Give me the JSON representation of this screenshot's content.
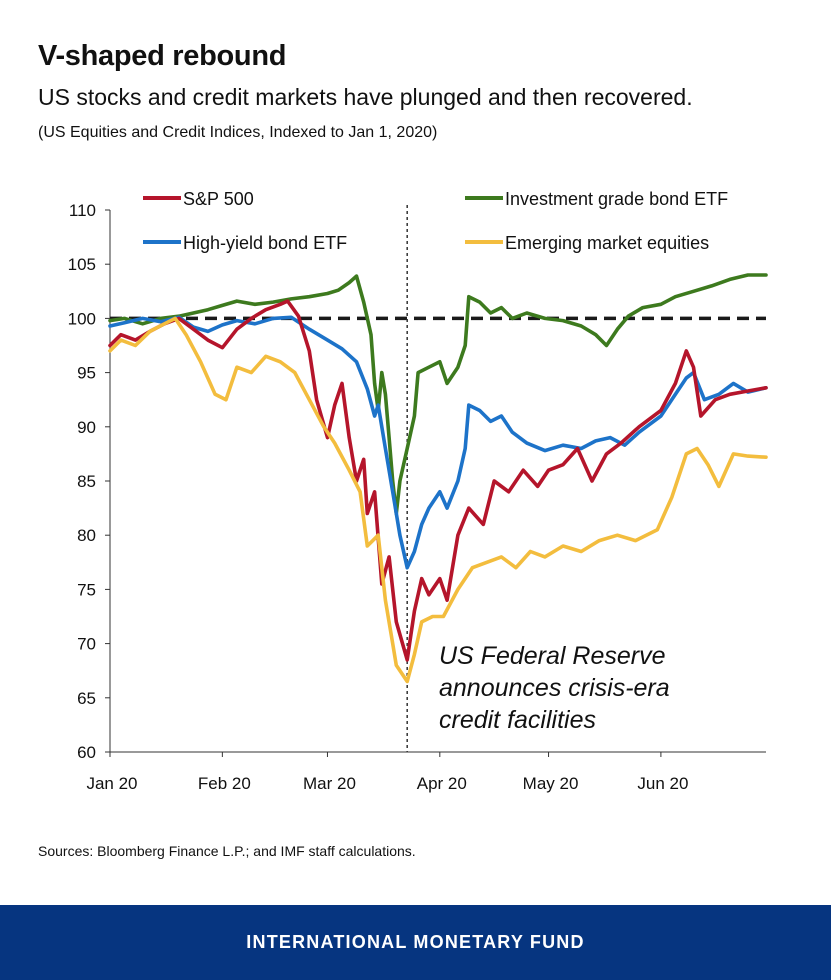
{
  "header": {
    "title": "V-shaped rebound",
    "subtitle": "US stocks and credit markets have plunged and then recovered.",
    "note": "(US Equities and Credit Indices, Indexed to Jan 1, 2020)"
  },
  "source": "Sources: Bloomberg Finance L.P.; and IMF staff calculations.",
  "footer": {
    "org": "INTERNATIONAL MONETARY FUND"
  },
  "chart_data": {
    "type": "line",
    "ylim": [
      60,
      110
    ],
    "yticks": [
      110,
      105,
      100,
      95,
      90,
      85,
      80,
      75,
      70,
      65,
      60
    ],
    "xlim": [
      "2020-01-01",
      "2020-06-30"
    ],
    "xticks": [
      {
        "label": "Jan 20",
        "date": "2020-01-01"
      },
      {
        "label": "Feb 20",
        "date": "2020-02-01"
      },
      {
        "label": "Mar 20",
        "date": "2020-03-01"
      },
      {
        "label": "Apr 20",
        "date": "2020-04-01"
      },
      {
        "label": "May 20",
        "date": "2020-05-01"
      },
      {
        "label": "Jun 20",
        "date": "2020-06-01"
      }
    ],
    "reference_line": {
      "y": 100,
      "style": "dashed"
    },
    "event_line": {
      "date": "2020-03-23",
      "style": "dotted"
    },
    "annotation": [
      "US Federal Reserve",
      "announces crisis-era",
      "credit facilities"
    ],
    "legend": [
      "S&P 500",
      "Investment grade bond ETF",
      "High-yield bond ETF",
      "Emerging market equities"
    ],
    "colors": {
      "S&P 500": "#b5152b",
      "Investment grade bond ETF": "#3d7a1e",
      "High-yield bond ETF": "#1d73c9",
      "Emerging market equities": "#f3bd3e"
    },
    "series": [
      {
        "name": "Investment grade bond ETF",
        "points": [
          [
            "2020-01-01",
            99.8
          ],
          [
            "2020-01-05",
            100.0
          ],
          [
            "2020-01-10",
            99.5
          ],
          [
            "2020-01-15",
            100.0
          ],
          [
            "2020-01-20",
            100.2
          ],
          [
            "2020-01-24",
            100.5
          ],
          [
            "2020-01-28",
            100.8
          ],
          [
            "2020-02-01",
            101.2
          ],
          [
            "2020-02-05",
            101.6
          ],
          [
            "2020-02-10",
            101.3
          ],
          [
            "2020-02-15",
            101.5
          ],
          [
            "2020-02-20",
            101.8
          ],
          [
            "2020-02-25",
            102.0
          ],
          [
            "2020-03-01",
            102.3
          ],
          [
            "2020-03-04",
            102.6
          ],
          [
            "2020-03-07",
            103.3
          ],
          [
            "2020-03-09",
            103.9
          ],
          [
            "2020-03-11",
            101.5
          ],
          [
            "2020-03-13",
            98.5
          ],
          [
            "2020-03-14",
            94.0
          ],
          [
            "2020-03-15",
            91.5
          ],
          [
            "2020-03-16",
            95.0
          ],
          [
            "2020-03-17",
            93.0
          ],
          [
            "2020-03-18",
            89.0
          ],
          [
            "2020-03-19",
            85.0
          ],
          [
            "2020-03-20",
            82.0
          ],
          [
            "2020-03-21",
            85.0
          ],
          [
            "2020-03-23",
            88.0
          ],
          [
            "2020-03-25",
            91.0
          ],
          [
            "2020-03-26",
            95.0
          ],
          [
            "2020-03-29",
            95.5
          ],
          [
            "2020-04-01",
            96.0
          ],
          [
            "2020-04-03",
            94.0
          ],
          [
            "2020-04-06",
            95.5
          ],
          [
            "2020-04-08",
            97.5
          ],
          [
            "2020-04-09",
            102.0
          ],
          [
            "2020-04-12",
            101.5
          ],
          [
            "2020-04-15",
            100.5
          ],
          [
            "2020-04-18",
            101.0
          ],
          [
            "2020-04-21",
            100.0
          ],
          [
            "2020-04-25",
            100.5
          ],
          [
            "2020-04-30",
            100.0
          ],
          [
            "2020-05-05",
            99.8
          ],
          [
            "2020-05-10",
            99.3
          ],
          [
            "2020-05-14",
            98.5
          ],
          [
            "2020-05-17",
            97.5
          ],
          [
            "2020-05-20",
            99.0
          ],
          [
            "2020-05-23",
            100.2
          ],
          [
            "2020-05-27",
            101.0
          ],
          [
            "2020-06-01",
            101.3
          ],
          [
            "2020-06-05",
            102.0
          ],
          [
            "2020-06-10",
            102.5
          ],
          [
            "2020-06-15",
            103.0
          ],
          [
            "2020-06-20",
            103.6
          ],
          [
            "2020-06-25",
            104.0
          ],
          [
            "2020-06-30",
            104.0
          ]
        ]
      },
      {
        "name": "High-yield bond ETF",
        "points": [
          [
            "2020-01-01",
            99.3
          ],
          [
            "2020-01-05",
            99.6
          ],
          [
            "2020-01-10",
            100.0
          ],
          [
            "2020-01-15",
            99.7
          ],
          [
            "2020-01-20",
            100.1
          ],
          [
            "2020-01-24",
            99.2
          ],
          [
            "2020-01-28",
            98.8
          ],
          [
            "2020-02-01",
            99.4
          ],
          [
            "2020-02-05",
            99.8
          ],
          [
            "2020-02-10",
            99.5
          ],
          [
            "2020-02-15",
            100.0
          ],
          [
            "2020-02-20",
            100.1
          ],
          [
            "2020-02-25",
            99.0
          ],
          [
            "2020-03-01",
            98.0
          ],
          [
            "2020-03-05",
            97.2
          ],
          [
            "2020-03-09",
            96.0
          ],
          [
            "2020-03-12",
            93.5
          ],
          [
            "2020-03-14",
            91.0
          ],
          [
            "2020-03-15",
            92.0
          ],
          [
            "2020-03-17",
            88.0
          ],
          [
            "2020-03-19",
            84.0
          ],
          [
            "2020-03-21",
            80.0
          ],
          [
            "2020-03-23",
            77.0
          ],
          [
            "2020-03-25",
            78.5
          ],
          [
            "2020-03-27",
            81.0
          ],
          [
            "2020-03-29",
            82.5
          ],
          [
            "2020-04-01",
            84.0
          ],
          [
            "2020-04-03",
            82.5
          ],
          [
            "2020-04-06",
            85.0
          ],
          [
            "2020-04-08",
            88.0
          ],
          [
            "2020-04-09",
            92.0
          ],
          [
            "2020-04-12",
            91.5
          ],
          [
            "2020-04-15",
            90.5
          ],
          [
            "2020-04-18",
            91.0
          ],
          [
            "2020-04-21",
            89.5
          ],
          [
            "2020-04-25",
            88.5
          ],
          [
            "2020-04-30",
            87.8
          ],
          [
            "2020-05-05",
            88.3
          ],
          [
            "2020-05-10",
            88.0
          ],
          [
            "2020-05-14",
            88.7
          ],
          [
            "2020-05-18",
            89.0
          ],
          [
            "2020-05-22",
            88.3
          ],
          [
            "2020-05-26",
            89.5
          ],
          [
            "2020-06-01",
            91.0
          ],
          [
            "2020-06-05",
            93.0
          ],
          [
            "2020-06-08",
            94.5
          ],
          [
            "2020-06-10",
            95.0
          ],
          [
            "2020-06-13",
            92.5
          ],
          [
            "2020-06-17",
            93.0
          ],
          [
            "2020-06-21",
            94.0
          ],
          [
            "2020-06-25",
            93.2
          ],
          [
            "2020-06-30",
            93.6
          ]
        ]
      },
      {
        "name": "S&P 500",
        "points": [
          [
            "2020-01-01",
            97.5
          ],
          [
            "2020-01-04",
            98.5
          ],
          [
            "2020-01-08",
            98.0
          ],
          [
            "2020-01-12",
            98.8
          ],
          [
            "2020-01-16",
            99.5
          ],
          [
            "2020-01-20",
            100.0
          ],
          [
            "2020-01-24",
            99.0
          ],
          [
            "2020-01-28",
            98.0
          ],
          [
            "2020-02-01",
            97.3
          ],
          [
            "2020-02-05",
            99.0
          ],
          [
            "2020-02-09",
            100.0
          ],
          [
            "2020-02-13",
            100.8
          ],
          [
            "2020-02-17",
            101.3
          ],
          [
            "2020-02-19",
            101.6
          ],
          [
            "2020-02-22",
            100.2
          ],
          [
            "2020-02-25",
            97.0
          ],
          [
            "2020-02-27",
            92.5
          ],
          [
            "2020-03-01",
            89.0
          ],
          [
            "2020-03-03",
            92.0
          ],
          [
            "2020-03-05",
            94.0
          ],
          [
            "2020-03-07",
            89.0
          ],
          [
            "2020-03-09",
            85.0
          ],
          [
            "2020-03-11",
            87.0
          ],
          [
            "2020-03-12",
            82.0
          ],
          [
            "2020-03-14",
            84.0
          ],
          [
            "2020-03-16",
            75.5
          ],
          [
            "2020-03-18",
            78.0
          ],
          [
            "2020-03-20",
            72.0
          ],
          [
            "2020-03-23",
            68.5
          ],
          [
            "2020-03-25",
            73.0
          ],
          [
            "2020-03-27",
            76.0
          ],
          [
            "2020-03-29",
            74.5
          ],
          [
            "2020-04-01",
            76.0
          ],
          [
            "2020-04-03",
            74.0
          ],
          [
            "2020-04-06",
            80.0
          ],
          [
            "2020-04-09",
            82.5
          ],
          [
            "2020-04-13",
            81.0
          ],
          [
            "2020-04-16",
            85.0
          ],
          [
            "2020-04-20",
            84.0
          ],
          [
            "2020-04-24",
            86.0
          ],
          [
            "2020-04-28",
            84.5
          ],
          [
            "2020-05-01",
            86.0
          ],
          [
            "2020-05-05",
            86.5
          ],
          [
            "2020-05-09",
            88.0
          ],
          [
            "2020-05-13",
            85.0
          ],
          [
            "2020-05-17",
            87.5
          ],
          [
            "2020-05-21",
            88.5
          ],
          [
            "2020-05-26",
            90.0
          ],
          [
            "2020-06-01",
            91.5
          ],
          [
            "2020-06-05",
            94.0
          ],
          [
            "2020-06-08",
            97.0
          ],
          [
            "2020-06-10",
            95.5
          ],
          [
            "2020-06-12",
            91.0
          ],
          [
            "2020-06-16",
            92.5
          ],
          [
            "2020-06-20",
            93.0
          ],
          [
            "2020-06-25",
            93.3
          ],
          [
            "2020-06-30",
            93.6
          ]
        ]
      },
      {
        "name": "Emerging market equities",
        "points": [
          [
            "2020-01-01",
            97.0
          ],
          [
            "2020-01-04",
            98.0
          ],
          [
            "2020-01-08",
            97.5
          ],
          [
            "2020-01-12",
            98.8
          ],
          [
            "2020-01-16",
            99.5
          ],
          [
            "2020-01-19",
            100.0
          ],
          [
            "2020-01-22",
            98.5
          ],
          [
            "2020-01-26",
            96.0
          ],
          [
            "2020-01-30",
            93.0
          ],
          [
            "2020-02-02",
            92.5
          ],
          [
            "2020-02-05",
            95.5
          ],
          [
            "2020-02-09",
            95.0
          ],
          [
            "2020-02-13",
            96.5
          ],
          [
            "2020-02-17",
            96.0
          ],
          [
            "2020-02-21",
            95.0
          ],
          [
            "2020-02-25",
            92.5
          ],
          [
            "2020-02-29",
            90.0
          ],
          [
            "2020-03-03",
            88.5
          ],
          [
            "2020-03-07",
            86.0
          ],
          [
            "2020-03-10",
            84.0
          ],
          [
            "2020-03-12",
            79.0
          ],
          [
            "2020-03-15",
            80.0
          ],
          [
            "2020-03-17",
            74.0
          ],
          [
            "2020-03-19",
            70.0
          ],
          [
            "2020-03-20",
            68.0
          ],
          [
            "2020-03-22",
            67.0
          ],
          [
            "2020-03-23",
            66.5
          ],
          [
            "2020-03-25",
            69.0
          ],
          [
            "2020-03-27",
            72.0
          ],
          [
            "2020-03-30",
            72.5
          ],
          [
            "2020-04-02",
            72.5
          ],
          [
            "2020-04-06",
            75.0
          ],
          [
            "2020-04-10",
            77.0
          ],
          [
            "2020-04-14",
            77.5
          ],
          [
            "2020-04-18",
            78.0
          ],
          [
            "2020-04-22",
            77.0
          ],
          [
            "2020-04-26",
            78.5
          ],
          [
            "2020-04-30",
            78.0
          ],
          [
            "2020-05-05",
            79.0
          ],
          [
            "2020-05-10",
            78.5
          ],
          [
            "2020-05-15",
            79.5
          ],
          [
            "2020-05-20",
            80.0
          ],
          [
            "2020-05-25",
            79.5
          ],
          [
            "2020-05-31",
            80.5
          ],
          [
            "2020-06-04",
            83.5
          ],
          [
            "2020-06-08",
            87.5
          ],
          [
            "2020-06-11",
            88.0
          ],
          [
            "2020-06-14",
            86.5
          ],
          [
            "2020-06-17",
            84.5
          ],
          [
            "2020-06-21",
            87.5
          ],
          [
            "2020-06-25",
            87.3
          ],
          [
            "2020-06-30",
            87.2
          ]
        ]
      }
    ]
  }
}
